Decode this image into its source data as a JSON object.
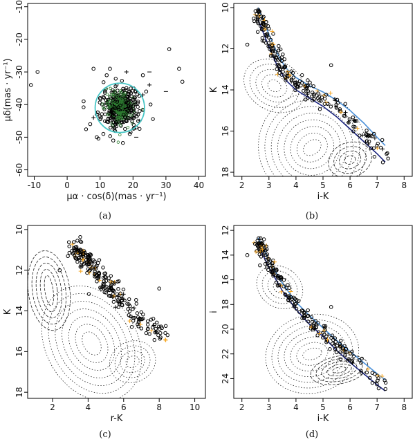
{
  "figure": {
    "captions": [
      "(a)",
      "(b)",
      "(c)",
      "(d)"
    ]
  },
  "chart_data": [
    {
      "panel": "a",
      "type": "scatter",
      "xlabel": "μα · cos(δ)(mas · yr⁻¹)",
      "ylabel": "μδ(mas · yr⁻¹)",
      "xlim": [
        -12,
        42
      ],
      "ylim": [
        -62,
        -9
      ],
      "y_inverted": false,
      "xticks": [
        -10,
        0,
        10,
        20,
        30,
        40
      ],
      "yticks": [
        -10,
        -20,
        -30,
        -40,
        -50,
        -60
      ],
      "circle": {
        "center": [
          16,
          -41
        ],
        "radius": 7.5,
        "color": "#48c6c6"
      },
      "cluster_cloud": {
        "center": [
          16,
          -41
        ],
        "spread": [
          3.0,
          3.0
        ],
        "color": "#2e7d32"
      },
      "outliers": [
        [
          -11,
          -34
        ],
        [
          -9,
          -30
        ],
        [
          8,
          -29
        ],
        [
          12,
          -31
        ],
        [
          31,
          -23
        ],
        [
          34,
          -29
        ],
        [
          35,
          -33
        ],
        [
          5,
          -39
        ],
        [
          7,
          -46
        ],
        [
          9,
          -50
        ],
        [
          11,
          -49
        ],
        [
          23,
          -31
        ],
        [
          24,
          -36
        ],
        [
          22,
          -42
        ],
        [
          21,
          -47
        ],
        [
          19,
          -49
        ],
        [
          14,
          -51
        ],
        [
          10,
          -38
        ],
        [
          9,
          -43
        ],
        [
          13,
          -29
        ]
      ],
      "plus_points": [
        [
          25,
          -34
        ],
        [
          22,
          -45
        ],
        [
          8,
          -44
        ],
        [
          18,
          -30
        ],
        [
          23,
          -37
        ]
      ],
      "minus_points": [
        [
          25,
          -30
        ],
        [
          30,
          -36
        ],
        [
          21,
          -50
        ]
      ]
    },
    {
      "panel": "b",
      "type": "scatter",
      "xlabel": "i-K",
      "ylabel": "K",
      "xlim": [
        1.7,
        8.3
      ],
      "ylim": [
        18.2,
        9.8
      ],
      "y_inverted": true,
      "xticks": [
        2,
        3,
        4,
        5,
        6,
        7,
        8
      ],
      "yticks": [
        10,
        12,
        14,
        16,
        18
      ],
      "upper_curve": {
        "x": [
          2.6,
          3.0,
          3.3,
          3.6,
          4.0,
          4.5,
          5.0,
          5.5,
          6.0,
          6.5,
          7.0,
          7.3
        ],
        "y": [
          10.0,
          11.3,
          12.2,
          12.9,
          13.4,
          13.8,
          14.1,
          14.5,
          15.0,
          15.6,
          16.3,
          16.7
        ],
        "color": "#4a90d9"
      },
      "lower_curve": {
        "x": [
          2.6,
          3.0,
          3.3,
          3.6,
          4.0,
          4.5,
          5.0,
          5.5,
          6.0,
          6.5,
          7.0,
          7.3
        ],
        "y": [
          10.6,
          11.9,
          12.8,
          13.5,
          14.0,
          14.4,
          14.8,
          15.3,
          15.9,
          16.5,
          17.1,
          17.5
        ],
        "color": "#1a237e"
      },
      "isolated_points": [
        [
          2.2,
          11.8
        ],
        [
          5.3,
          12.8
        ],
        [
          2.9,
          10.7
        ]
      ]
    },
    {
      "panel": "c",
      "type": "scatter",
      "xlabel": "r-K",
      "ylabel": "K",
      "xlim": [
        0.6,
        10.6
      ],
      "ylim": [
        18.3,
        9.8
      ],
      "y_inverted": true,
      "xticks": [
        2,
        4,
        6,
        8,
        10
      ],
      "yticks": [
        10,
        12,
        14,
        16,
        18
      ],
      "sequence": {
        "x": [
          3.3,
          3.8,
          4.3,
          4.8,
          5.3,
          5.8,
          6.3,
          6.8,
          7.3,
          7.8,
          8.3
        ],
        "y": [
          11.0,
          11.4,
          11.9,
          12.4,
          12.9,
          13.4,
          13.9,
          14.3,
          14.7,
          15.0,
          15.2
        ]
      },
      "isolated_points": [
        [
          8.0,
          12.9
        ],
        [
          2.4,
          12.0
        ],
        [
          3.2,
          10.9
        ]
      ]
    },
    {
      "panel": "d",
      "type": "scatter",
      "xlabel": "i-K",
      "ylabel": "i",
      "xlim": [
        1.7,
        8.3
      ],
      "ylim": [
        25.6,
        11.6
      ],
      "y_inverted": true,
      "xticks": [
        2,
        3,
        4,
        5,
        6,
        7,
        8
      ],
      "yticks": [
        12,
        14,
        16,
        18,
        20,
        22,
        24
      ],
      "upper_curve": {
        "x": [
          2.6,
          3.0,
          3.5,
          4.0,
          4.5,
          5.0,
          5.5,
          6.0,
          6.5,
          7.0,
          7.3
        ],
        "y": [
          12.6,
          14.4,
          16.3,
          17.8,
          18.9,
          19.9,
          20.9,
          21.8,
          22.7,
          23.6,
          24.1
        ],
        "color": "#4a90d9"
      },
      "lower_curve": {
        "x": [
          2.6,
          3.0,
          3.5,
          4.0,
          4.5,
          5.0,
          5.5,
          6.0,
          6.5,
          7.0,
          7.3
        ],
        "y": [
          13.2,
          15.0,
          16.9,
          18.4,
          19.6,
          20.6,
          21.7,
          22.7,
          23.6,
          24.5,
          25.0
        ],
        "color": "#1a237e"
      },
      "isolated_points": [
        [
          5.3,
          18.2
        ],
        [
          2.2,
          14.0
        ],
        [
          2.9,
          13.3
        ]
      ]
    }
  ]
}
